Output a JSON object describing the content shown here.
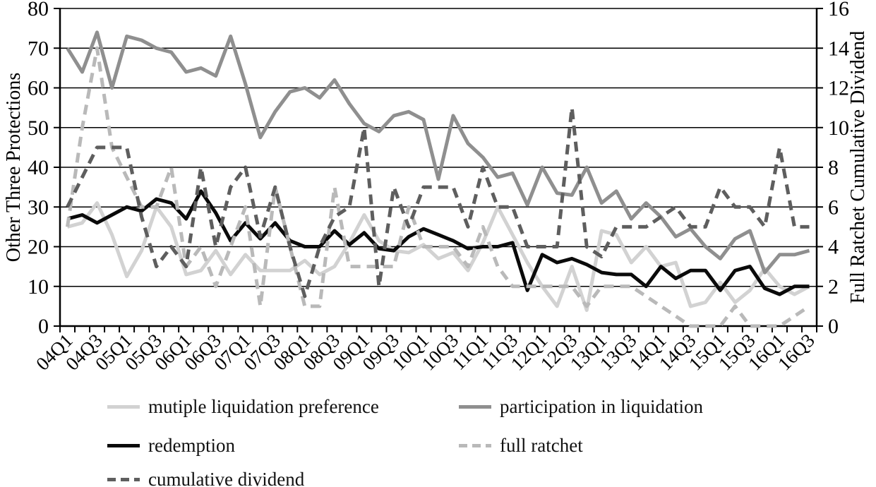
{
  "chart_data": {
    "type": "line",
    "title": "",
    "categories": [
      "04Q1",
      "04Q2",
      "04Q3",
      "04Q4",
      "05Q1",
      "05Q2",
      "05Q3",
      "05Q4",
      "06Q1",
      "06Q2",
      "06Q3",
      "06Q4",
      "07Q1",
      "07Q2",
      "07Q3",
      "07Q4",
      "08Q1",
      "08Q2",
      "08Q3",
      "08Q4",
      "09Q1",
      "09Q2",
      "09Q3",
      "09Q4",
      "10Q1",
      "10Q2",
      "10Q3",
      "10Q4",
      "11Q1",
      "11Q2",
      "11Q3",
      "11Q4",
      "12Q1",
      "12Q2",
      "12Q3",
      "12Q4",
      "13Q1",
      "13Q2",
      "13Q3",
      "13Q4",
      "14Q1",
      "14Q2",
      "14Q3",
      "14Q4",
      "15Q1",
      "15Q2",
      "15Q3",
      "15Q4",
      "16Q1",
      "16Q2",
      "16Q3"
    ],
    "x_axis": {
      "labels_shown": [
        "04Q1",
        "04Q3",
        "05Q1",
        "05Q3",
        "06Q1",
        "06Q3",
        "07Q1",
        "07Q3",
        "08Q1",
        "08Q3",
        "09Q1",
        "09Q3",
        "10Q1",
        "10Q3",
        "11Q1",
        "11Q3",
        "12Q1",
        "12Q3",
        "13Q1",
        "13Q3",
        "14Q1",
        "14Q3",
        "15Q1",
        "15Q3",
        "16Q1",
        "16Q3"
      ],
      "label_every": 2,
      "label_rotation_deg": -45
    },
    "y_left": {
      "label": "Other Three Protections",
      "min": 0,
      "max": 80,
      "ticks": [
        0,
        10,
        20,
        30,
        40,
        50,
        60,
        70,
        80
      ]
    },
    "y_right": {
      "label": "Full Ratchet Cumulative Dividend",
      "min": 0,
      "max": 16,
      "ticks": [
        0,
        2,
        4,
        6,
        8,
        10,
        12,
        14,
        16
      ]
    },
    "grid": "horizontal-only",
    "legend_position": "bottom-left-two-columns",
    "series": [
      {
        "name": "mutiple liquidation preference",
        "axis": "left",
        "style": "solid",
        "color": "#d2d2d2",
        "values": [
          25,
          26,
          31,
          23,
          12.5,
          19,
          30,
          25,
          13,
          14,
          19,
          13,
          18,
          14,
          14,
          14,
          16.5,
          13,
          15,
          21,
          28,
          21.5,
          19,
          18.5,
          20.5,
          17,
          18.5,
          14,
          21,
          30,
          23,
          16,
          10,
          5,
          15,
          4,
          24,
          23,
          16,
          20,
          15,
          16,
          5,
          6,
          11,
          6,
          9,
          14.5,
          10,
          8,
          10
        ]
      },
      {
        "name": "participation in liquidation",
        "axis": "left",
        "style": "solid",
        "color": "#8f8f8f",
        "values": [
          70,
          64,
          74,
          60,
          73,
          72,
          70,
          69,
          64,
          65,
          63,
          73,
          61,
          47.5,
          54,
          59,
          60,
          57.5,
          62,
          56,
          51,
          49,
          53,
          54,
          52,
          37,
          53,
          46,
          42.5,
          37.5,
          38.5,
          30.5,
          40,
          33.5,
          33,
          40,
          31,
          34,
          27,
          31,
          27.5,
          22.5,
          24.5,
          20,
          17,
          22,
          24,
          13.5,
          18,
          18,
          19
        ]
      },
      {
        "name": "redemption",
        "axis": "left",
        "style": "solid",
        "color": "#0a0a0a",
        "values": [
          27,
          28,
          26,
          28,
          30,
          29,
          32,
          31,
          27,
          34,
          28.5,
          21.5,
          26,
          22,
          26,
          21.5,
          20,
          20,
          24,
          20.5,
          23.5,
          19.5,
          19,
          22.5,
          24.5,
          23,
          21.5,
          19.5,
          20,
          20,
          21,
          9,
          18,
          16,
          17,
          15.5,
          13.5,
          13,
          13,
          10,
          15,
          12,
          14,
          14,
          9,
          14,
          15,
          9.5,
          8,
          10,
          10
        ]
      },
      {
        "name": "full ratchet",
        "axis": "right",
        "style": "dashed",
        "color": "#b9b9b9",
        "values": [
          5,
          10,
          14,
          9,
          7.5,
          6,
          6,
          8,
          3,
          4,
          2,
          4,
          6,
          1,
          7,
          4,
          1,
          1,
          7,
          3,
          3,
          3,
          3,
          6,
          4,
          4,
          4,
          3,
          5,
          3,
          2,
          2,
          2,
          2,
          2,
          1,
          2,
          2,
          2,
          1.5,
          1,
          0.5,
          0,
          0,
          0,
          1,
          0,
          0,
          0,
          0.5,
          1
        ]
      },
      {
        "name": "cumulative dividend",
        "axis": "right",
        "style": "dashed",
        "color": "#5e5e5e",
        "values": [
          6,
          7.5,
          9,
          9,
          9,
          5.5,
          3,
          4,
          3,
          8,
          4,
          7,
          8,
          4.5,
          7,
          4,
          1.5,
          4,
          5.5,
          6,
          10,
          2,
          7,
          5,
          7,
          7,
          7,
          5,
          8,
          6,
          6,
          4,
          4,
          4,
          11,
          4,
          3.5,
          5,
          5,
          5,
          5.5,
          6,
          5,
          5,
          7,
          6,
          6,
          5,
          9,
          5,
          5
        ]
      }
    ],
    "legend": [
      {
        "label": "mutiple liquidation preference",
        "series": 0
      },
      {
        "label": "participation in liquidation",
        "series": 1
      },
      {
        "label": "redemption",
        "series": 2
      },
      {
        "label": "full ratchet",
        "series": 3
      },
      {
        "label": "cumulative dividend",
        "series": 4
      }
    ]
  }
}
